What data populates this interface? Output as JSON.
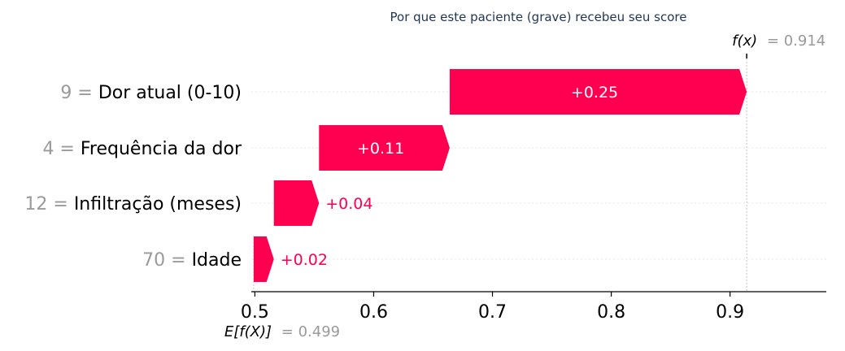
{
  "chart_data": {
    "type": "waterfall",
    "title": "Por que este paciente (grave) recebeu seu score",
    "base_value": 0.499,
    "base_label": "E[f(X)]",
    "base_value_text": "= 0.499",
    "output_value": 0.914,
    "output_label": "f(x)",
    "output_value_text": "= 0.914",
    "xlim": [
      0.497,
      0.981
    ],
    "xticks": [
      0.5,
      0.6,
      0.7,
      0.8,
      0.9
    ],
    "xtick_labels": [
      "0.5",
      "0.6",
      "0.7",
      "0.8",
      "0.9"
    ],
    "features": [
      {
        "value_text": "9 =",
        "name": "Dor atual (0-10)",
        "start": 0.664,
        "end": 0.914,
        "contribution_text": "+0.25"
      },
      {
        "value_text": "4 =",
        "name": "Frequência da dor",
        "start": 0.554,
        "end": 0.664,
        "contribution_text": "+0.11"
      },
      {
        "value_text": "12 =",
        "name": "Infiltração (meses)",
        "start": 0.516,
        "end": 0.554,
        "contribution_text": "+0.04"
      },
      {
        "value_text": "70 =",
        "name": "Idade",
        "start": 0.499,
        "end": 0.516,
        "contribution_text": "+0.02"
      }
    ],
    "colors": {
      "positive": "#ff0051",
      "title": "#1f3556",
      "label_gray": "#9a9a9a",
      "grid": "#e6e6e6"
    }
  }
}
